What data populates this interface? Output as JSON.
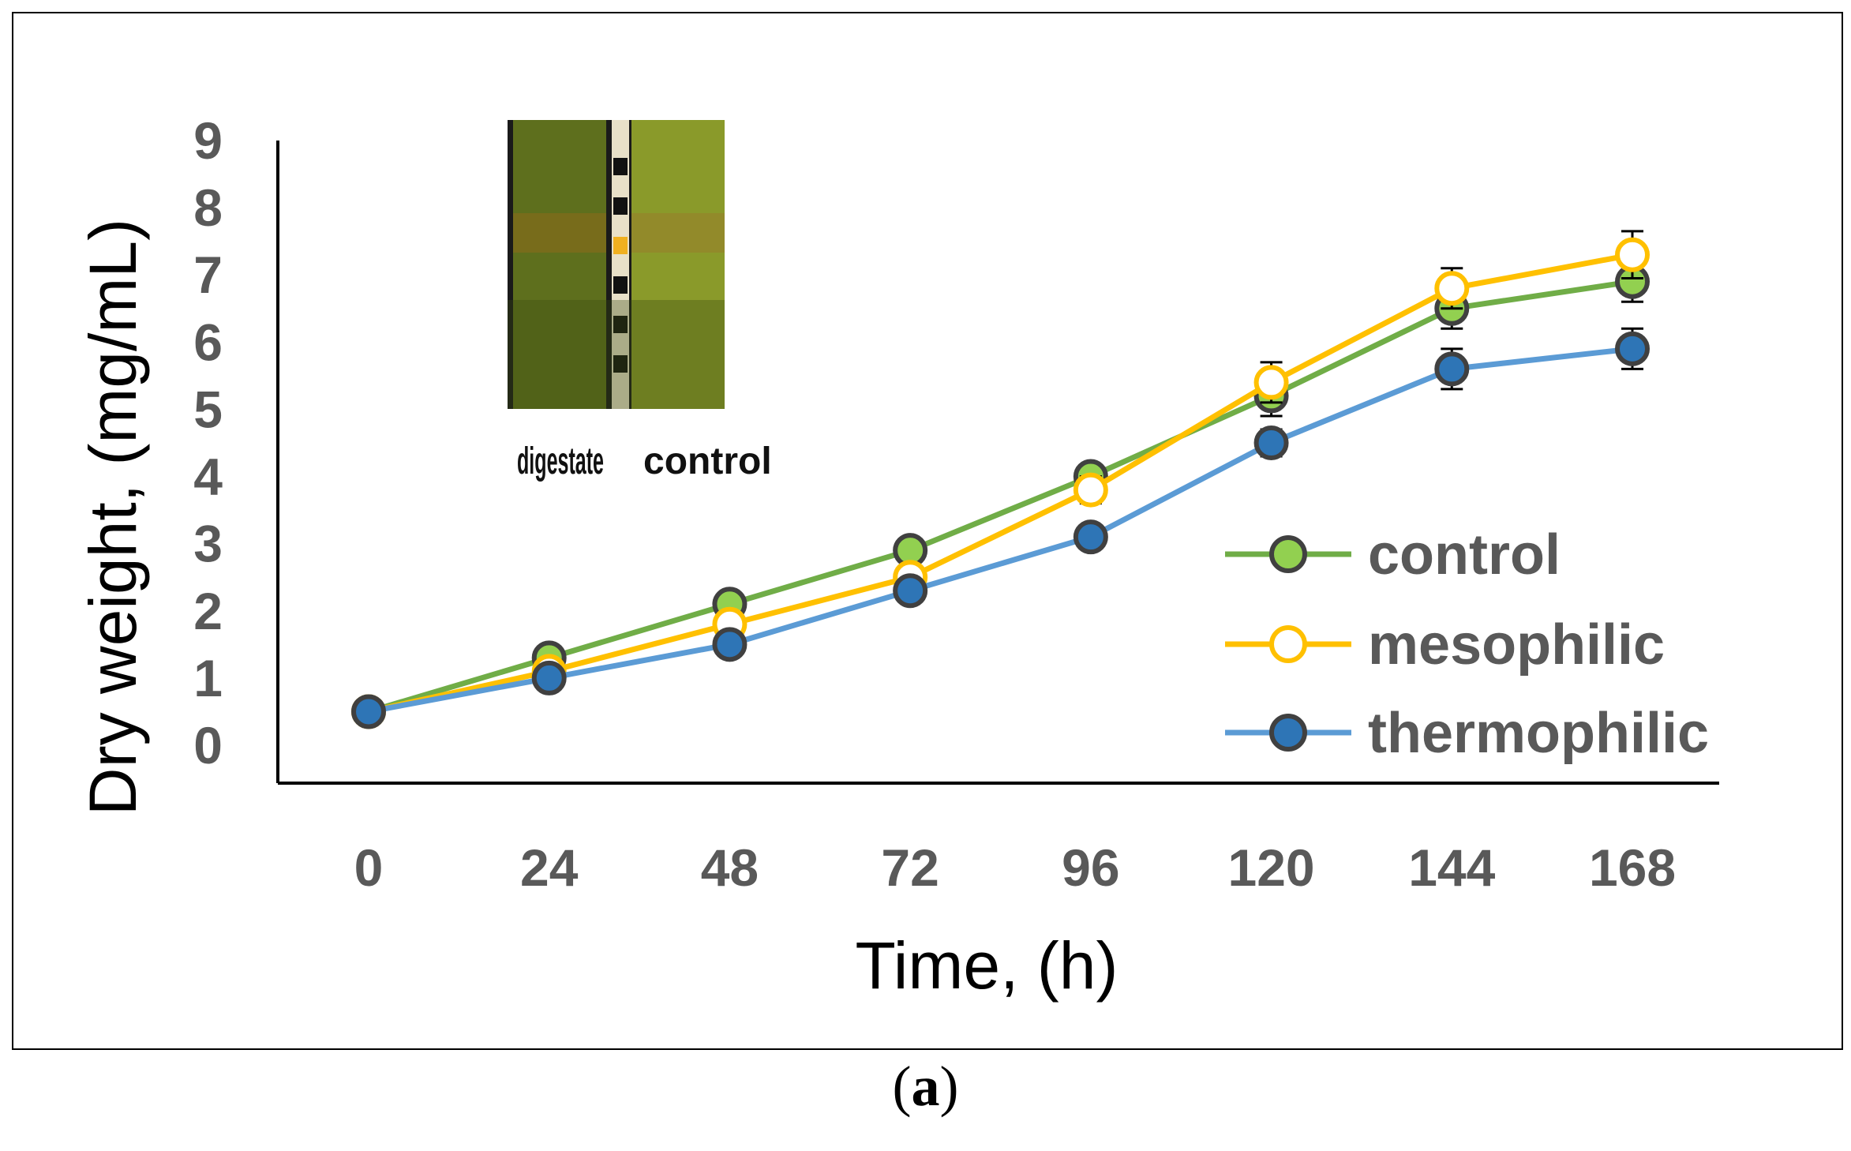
{
  "panel_label": {
    "open": "(",
    "letter": "a",
    "close": ")"
  },
  "inset": {
    "labels": [
      "digestate",
      "control"
    ]
  },
  "chart_data": {
    "type": "line",
    "title": "",
    "xlabel": "Time, (h)",
    "ylabel": "Dry weight, (mg/mL)",
    "x": [
      0,
      24,
      48,
      72,
      96,
      120,
      144,
      168
    ],
    "x_ticks": [
      "0",
      "24",
      "48",
      "72",
      "96",
      "120",
      "144",
      "168"
    ],
    "y_ticks": [
      "0",
      "1",
      "2",
      "3",
      "4",
      "5",
      "6",
      "7",
      "8",
      "9"
    ],
    "ylim": [
      0,
      9
    ],
    "grid": false,
    "legend": "right",
    "series": [
      {
        "name": "control",
        "marker": "filled-circle",
        "line_color": "#70AD47",
        "marker_fill": "#92D050",
        "marker_edge": "#404040",
        "values": [
          0.5,
          1.3,
          2.1,
          2.9,
          4.0,
          5.2,
          6.5,
          6.9
        ],
        "errors": [
          0.05,
          0.1,
          0.1,
          0.1,
          0.1,
          0.3,
          0.3,
          0.3
        ]
      },
      {
        "name": "mesophilic",
        "marker": "open-circle",
        "line_color": "#FFC000",
        "marker_fill": "#FFFFFF",
        "marker_edge": "#FFC000",
        "values": [
          0.5,
          1.1,
          1.8,
          2.5,
          3.8,
          5.4,
          6.8,
          7.3
        ],
        "errors": [
          0.05,
          0.1,
          0.1,
          0.1,
          0.2,
          0.3,
          0.3,
          0.35
        ]
      },
      {
        "name": "thermophilic",
        "marker": "filled-circle",
        "line_color": "#5B9BD5",
        "marker_fill": "#2E75B6",
        "marker_edge": "#404040",
        "values": [
          0.5,
          1.0,
          1.5,
          2.3,
          3.1,
          4.5,
          5.6,
          5.9
        ],
        "errors": [
          0.05,
          0.05,
          0.05,
          0.1,
          0.1,
          0.2,
          0.3,
          0.3
        ]
      }
    ]
  }
}
